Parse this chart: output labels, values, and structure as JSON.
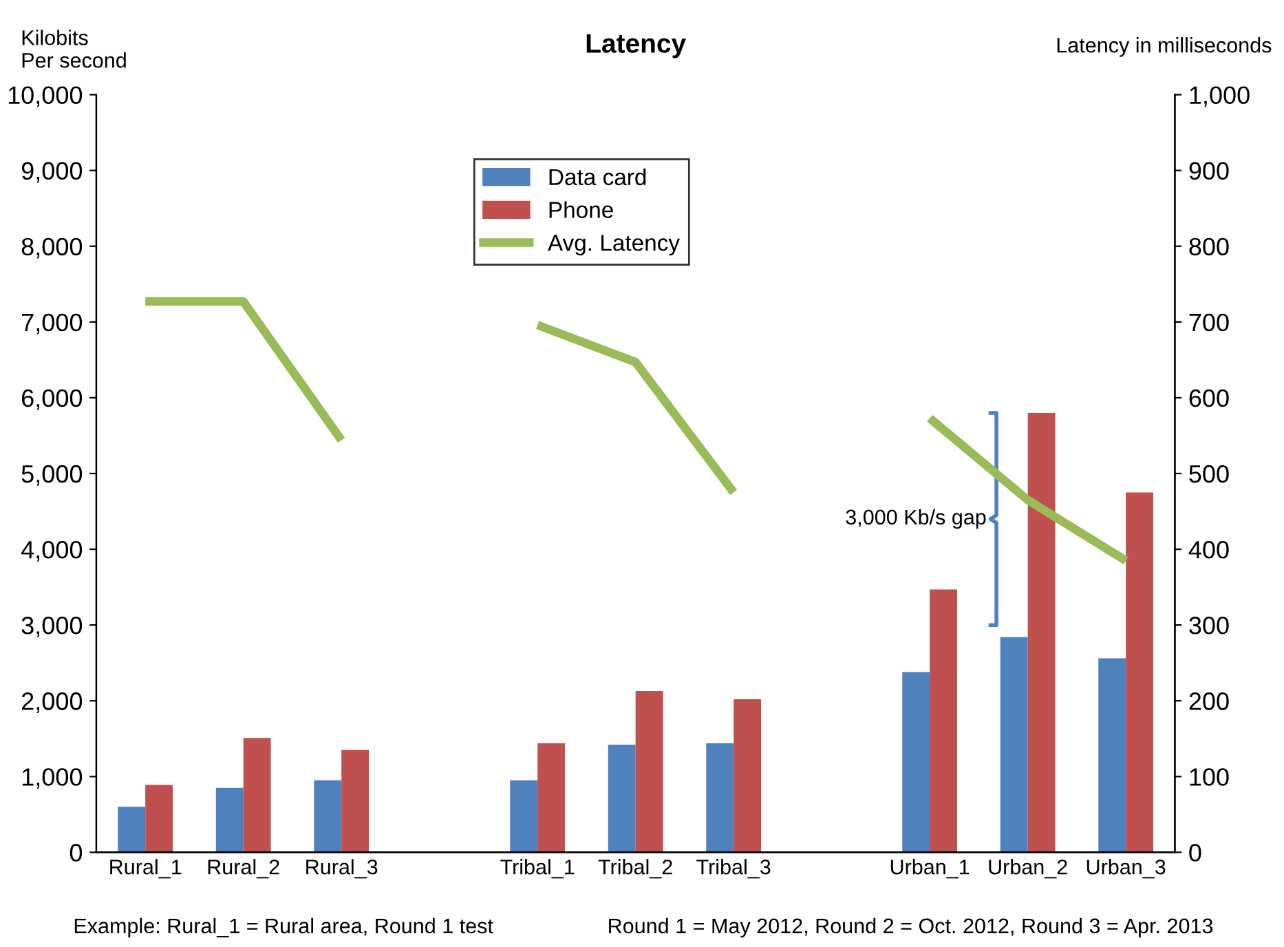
{
  "chart_data": {
    "type": "bar",
    "title": "Latency",
    "ylabel": "Kilobits\nPer second",
    "y2label": "Latency in milliseconds",
    "categories": [
      "Rural_1",
      "Rural_2",
      "Rural_3",
      null,
      "Tribal_1",
      "Tribal_2",
      "Tribal_3",
      null,
      "Urban_1",
      "Urban_2",
      "Urban_3"
    ],
    "series": [
      {
        "name": "Data card",
        "color": "#4f81bd",
        "values": [
          600,
          850,
          950,
          null,
          950,
          1420,
          1440,
          null,
          2380,
          2840,
          2560
        ]
      },
      {
        "name": "Phone",
        "color": "#c0504d",
        "values": [
          890,
          1510,
          1350,
          null,
          1440,
          2130,
          2020,
          null,
          3470,
          5800,
          4750
        ]
      },
      {
        "name": "Avg. Latency",
        "type": "line",
        "axis": "y2",
        "color": "#9bbb59",
        "line_style": "solid",
        "values": [
          727,
          727,
          544,
          null,
          696,
          647,
          475,
          null,
          573,
          465,
          385
        ]
      }
    ],
    "ylim": [
      0,
      10000
    ],
    "yticks": [
      {
        "value": 0,
        "label": "0"
      },
      {
        "value": 1000,
        "label": "1,000"
      },
      {
        "value": 2000,
        "label": "2,000"
      },
      {
        "value": 3000,
        "label": "3,000"
      },
      {
        "value": 4000,
        "label": "4,000"
      },
      {
        "value": 5000,
        "label": "5,000"
      },
      {
        "value": 6000,
        "label": "6,000"
      },
      {
        "value": 7000,
        "label": "7,000"
      },
      {
        "value": 8000,
        "label": "8,000"
      },
      {
        "value": 9000,
        "label": "9,000"
      },
      {
        "value": 10000,
        "label": "10,000"
      }
    ],
    "y2lim": [
      0,
      1000
    ],
    "y2ticks": [
      0,
      100,
      200,
      300,
      400,
      500,
      600,
      700,
      800,
      900,
      {
        "value": 1000,
        "label": "1,000"
      }
    ],
    "annotations": [
      {
        "text": "3,000 Kb/s gap",
        "x": "Urban_2",
        "y": 4400
      },
      "Example: Rural_1 = Rural area, Round 1 test",
      "Round 1 = May 2012, Round 2 = Oct. 2012, Round 3 = Apr. 2013"
    ],
    "legend": "top center",
    "grid": false
  }
}
